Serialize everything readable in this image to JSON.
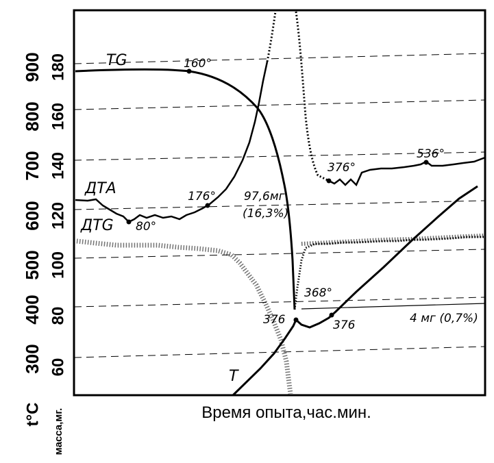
{
  "chart_data": {
    "type": "line",
    "title": "",
    "xlabel": "Время опыта,час.мин.",
    "ylabel_temperature": "t°C",
    "ylabel_mass": "масса,мг.",
    "temperature_ticks": [
      "900",
      "800",
      "700",
      "600",
      "500",
      "400",
      "300"
    ],
    "mass_ticks": [
      "180",
      "160",
      "140",
      "120",
      "100",
      "80",
      "60"
    ],
    "grid": "dashed horizontal",
    "series": [
      {
        "name": "TG",
        "style": "solid"
      },
      {
        "name": "ДТА",
        "style": "solid"
      },
      {
        "name": "ДТG",
        "style": "dotted"
      },
      {
        "name": "T",
        "style": "solid"
      }
    ],
    "annotations": [
      "160°",
      "176°",
      "80°",
      "97,6мг",
      "(16,3%)",
      "376°",
      "536°",
      "368°",
      "376",
      "376",
      "4 мг (0,7%)"
    ]
  }
}
